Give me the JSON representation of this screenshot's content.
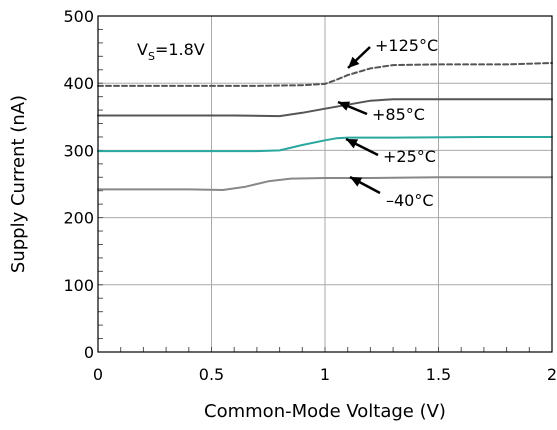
{
  "chart_data": {
    "type": "line",
    "xlabel": "Common-Mode Voltage (V)",
    "ylabel": "Supply Current (nA)",
    "xlim": [
      0,
      2
    ],
    "ylim": [
      0,
      500
    ],
    "xticks": [
      "0",
      "0.5",
      "1",
      "1.5",
      "2"
    ],
    "yticks": [
      "0",
      "100",
      "200",
      "300",
      "400",
      "500"
    ],
    "grid": true,
    "annotation": {
      "vs_main": "V",
      "vs_sub": "S",
      "vs_value": "=1.8V"
    },
    "series": [
      {
        "name": "+125°C",
        "color": "#555555",
        "dashed": true,
        "x": [
          0,
          0.7,
          0.9,
          1.0,
          1.05,
          1.1,
          1.2,
          1.3,
          1.5,
          1.8,
          2.0
        ],
        "y": [
          396,
          396,
          397,
          399,
          405,
          412,
          422,
          427,
          428,
          428,
          430
        ]
      },
      {
        "name": "+85°C",
        "color": "#555555",
        "dashed": false,
        "x": [
          0,
          0.6,
          0.8,
          0.9,
          1.0,
          1.1,
          1.2,
          1.3,
          1.6,
          2.0
        ],
        "y": [
          352,
          352,
          351,
          356,
          362,
          368,
          374,
          376,
          376,
          376
        ]
      },
      {
        "name": "+25°C",
        "color": "#2aa8a0",
        "dashed": false,
        "x": [
          0,
          0.7,
          0.8,
          0.9,
          1.0,
          1.05,
          1.1,
          1.3,
          1.7,
          2.0
        ],
        "y": [
          299,
          299,
          300,
          308,
          315,
          318,
          319,
          319,
          320,
          320
        ]
      },
      {
        "name": "-40°C",
        "color": "#888888",
        "dashed": false,
        "x": [
          0,
          0.4,
          0.55,
          0.65,
          0.75,
          0.85,
          1.0,
          1.2,
          1.5,
          2.0
        ],
        "y": [
          242,
          242,
          241,
          246,
          254,
          258,
          259,
          259,
          260,
          260
        ]
      }
    ],
    "labels": [
      {
        "text": "+125°C",
        "series": "+125°C"
      },
      {
        "text": "+85°C",
        "series": "+85°C"
      },
      {
        "text": "+25°C",
        "series": "+25°C"
      },
      {
        "text": "–40°C",
        "series": "-40°C"
      }
    ]
  }
}
